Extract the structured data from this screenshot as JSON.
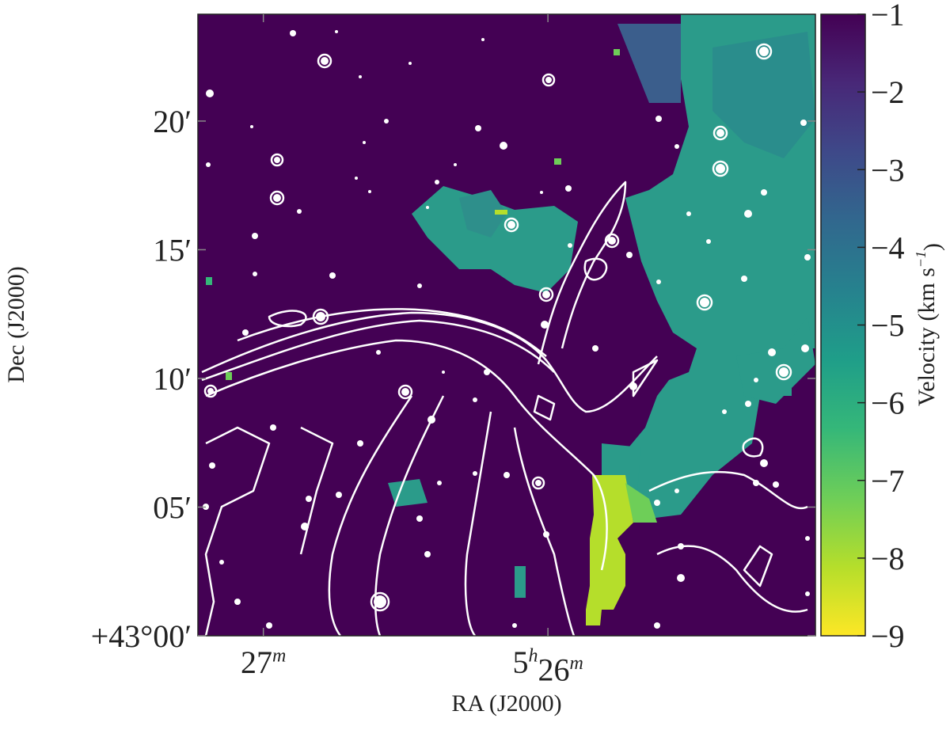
{
  "chart_data": {
    "type": "image",
    "xlabel": "RA (J2000)",
    "ylabel": "Dec (J2000)",
    "xlim": [
      27.23,
      25.06
    ],
    "xticks": [
      {
        "value": 27,
        "label": "27m"
      },
      {
        "value": 26,
        "label": "5h26m"
      }
    ],
    "ylim": [
      0,
      24.15
    ],
    "yticks": [
      {
        "value": 0,
        "label": "+43°00′"
      },
      {
        "value": 5,
        "label": "05′"
      },
      {
        "value": 10,
        "label": "10′"
      },
      {
        "value": 15,
        "label": "15′"
      },
      {
        "value": 20,
        "label": "20′"
      }
    ],
    "colorbar": {
      "label": "Velocity (km s−1)",
      "lim": [
        -9,
        -1
      ],
      "ticks": [
        -1,
        -2,
        -3,
        -4,
        -5,
        -6,
        -7,
        -8,
        -9
      ],
      "colormap": [
        "#fde725",
        "#b5de2b",
        "#6ece58",
        "#35b779",
        "#1f9e89",
        "#26828e",
        "#31688e",
        "#3e4989",
        "#482878",
        "#440154"
      ]
    }
  }
}
